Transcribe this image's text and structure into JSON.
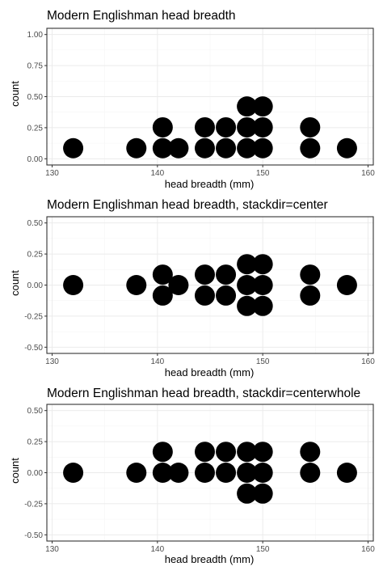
{
  "chart_data": [
    {
      "type": "dotplot",
      "title": "Modern Englishman head breadth",
      "xlabel": "head breadth (mm)",
      "ylabel": "count",
      "xlim": [
        129.5,
        160.5
      ],
      "ylim": [
        -0.05,
        1.05
      ],
      "xticks": [
        130,
        140,
        150,
        160
      ],
      "yticks": [
        0.0,
        0.25,
        0.5,
        0.75,
        1.0
      ],
      "ytick_labels": [
        "0.00",
        "0.25",
        "0.50",
        "0.75",
        "1.00"
      ],
      "stackdir": "up",
      "grid": true,
      "stacks": [
        {
          "x": 132.0,
          "count": 1
        },
        {
          "x": 138.0,
          "count": 1
        },
        {
          "x": 140.5,
          "count": 2
        },
        {
          "x": 142.0,
          "count": 1
        },
        {
          "x": 144.5,
          "count": 2
        },
        {
          "x": 146.5,
          "count": 2
        },
        {
          "x": 148.5,
          "count": 3
        },
        {
          "x": 150.0,
          "count": 3
        },
        {
          "x": 154.5,
          "count": 2
        },
        {
          "x": 158.0,
          "count": 1
        }
      ]
    },
    {
      "type": "dotplot",
      "title": "Modern Englishman head breadth, stackdir=center",
      "xlabel": "head breadth (mm)",
      "ylabel": "count",
      "xlim": [
        129.5,
        160.5
      ],
      "ylim": [
        -0.55,
        0.55
      ],
      "xticks": [
        130,
        140,
        150,
        160
      ],
      "yticks": [
        -0.5,
        -0.25,
        0.0,
        0.25,
        0.5
      ],
      "ytick_labels": [
        "-0.50",
        "-0.25",
        "0.00",
        "0.25",
        "0.50"
      ],
      "stackdir": "center",
      "grid": true,
      "stacks": [
        {
          "x": 132.0,
          "count": 1
        },
        {
          "x": 138.0,
          "count": 1
        },
        {
          "x": 140.5,
          "count": 2
        },
        {
          "x": 142.0,
          "count": 1
        },
        {
          "x": 144.5,
          "count": 2
        },
        {
          "x": 146.5,
          "count": 2
        },
        {
          "x": 148.5,
          "count": 3
        },
        {
          "x": 150.0,
          "count": 3
        },
        {
          "x": 154.5,
          "count": 2
        },
        {
          "x": 158.0,
          "count": 1
        }
      ]
    },
    {
      "type": "dotplot",
      "title": "Modern Englishman head breadth, stackdir=centerwhole",
      "xlabel": "head breadth (mm)",
      "ylabel": "count",
      "xlim": [
        129.5,
        160.5
      ],
      "ylim": [
        -0.55,
        0.55
      ],
      "xticks": [
        130,
        140,
        150,
        160
      ],
      "yticks": [
        -0.5,
        -0.25,
        0.0,
        0.25,
        0.5
      ],
      "ytick_labels": [
        "-0.50",
        "-0.25",
        "0.00",
        "0.25",
        "0.50"
      ],
      "stackdir": "centerwhole",
      "grid": true,
      "stacks": [
        {
          "x": 132.0,
          "count": 1
        },
        {
          "x": 138.0,
          "count": 1
        },
        {
          "x": 140.5,
          "count": 2
        },
        {
          "x": 142.0,
          "count": 1
        },
        {
          "x": 144.5,
          "count": 2
        },
        {
          "x": 146.5,
          "count": 2
        },
        {
          "x": 148.5,
          "count": 3
        },
        {
          "x": 150.0,
          "count": 3
        },
        {
          "x": 154.5,
          "count": 2
        },
        {
          "x": 158.0,
          "count": 1
        }
      ]
    }
  ],
  "colors": {
    "dot": "#000000",
    "panel_border": "#333333",
    "grid_major": "#ebebeb",
    "grid_minor": "#f5f5f5",
    "tick_label": "#4d4d4d"
  }
}
